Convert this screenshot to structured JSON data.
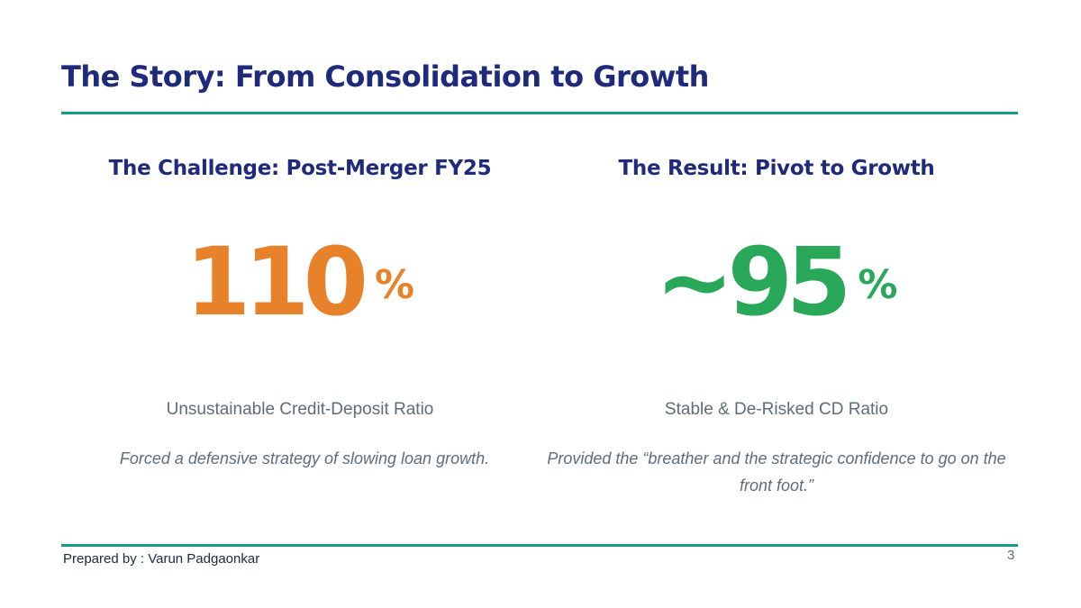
{
  "slide": {
    "title": "The Story: From Consolidation to Growth",
    "page_number": "3"
  },
  "left": {
    "heading": "The Challenge: Post-Merger FY25",
    "value": "110",
    "unit": "%",
    "label": "Unsustainable Credit-Deposit Ratio",
    "note": "Forced a defensive strategy of slowing loan growth.",
    "color": "#e8822a"
  },
  "right": {
    "heading": "The Result: Pivot to Growth",
    "value": "~95",
    "unit": "%",
    "label": "Stable & De-Risked CD Ratio",
    "note": "Provided the “breather and the strategic confidence to go on the front foot.”",
    "color": "#2aa85a"
  },
  "footer": {
    "prepared_by": "Prepared by : Varun Padgaonkar"
  },
  "colors": {
    "title": "#1f2a7c",
    "rule": "#17998a",
    "body_text": "#5f6d78"
  }
}
